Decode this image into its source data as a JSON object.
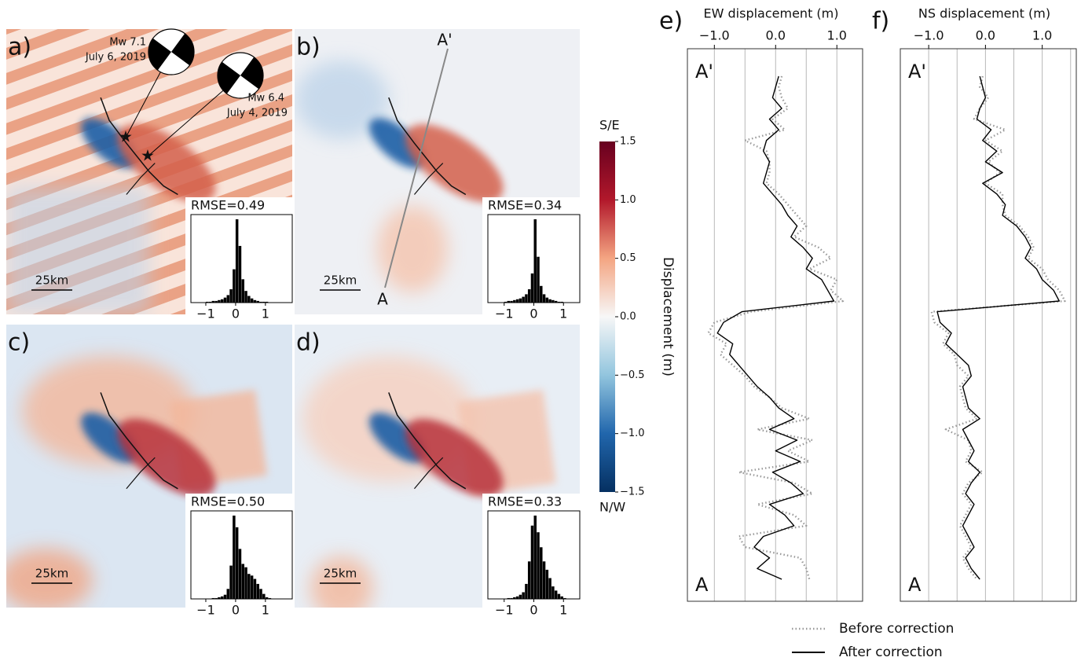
{
  "chart_data": [
    {
      "type": "histogram",
      "panel_label": "a)",
      "rmse": "RMSE=0.49",
      "scale_label": "25km",
      "annotations": [
        "Mw 7.1",
        "July 6, 2019",
        "Mw 6.4",
        "July 4, 2019"
      ],
      "bins": [
        -1.0,
        -0.9,
        -0.8,
        -0.7,
        -0.6,
        -0.5,
        -0.4,
        -0.3,
        -0.2,
        -0.1,
        0.0,
        0.1,
        0.2,
        0.3,
        0.4,
        0.5,
        0.6,
        0.7,
        0.8,
        0.9,
        1.0,
        1.1,
        1.2
      ],
      "values": [
        1,
        1,
        2,
        2,
        3,
        4,
        6,
        9,
        16,
        40,
        100,
        68,
        28,
        14,
        8,
        5,
        3,
        2,
        1,
        1,
        1,
        0
      ],
      "color": "#000000",
      "xlim": [
        -1.5,
        1.9
      ],
      "xticks": [
        {
          "value": -1,
          "label": "−1"
        },
        0,
        1
      ]
    },
    {
      "type": "histogram",
      "panel_label": "b)",
      "rmse": "RMSE=0.34",
      "scale_label": "25km",
      "annotations": [
        "A'",
        "A"
      ],
      "bins": [
        -1.0,
        -0.9,
        -0.8,
        -0.7,
        -0.6,
        -0.5,
        -0.4,
        -0.3,
        -0.2,
        -0.1,
        0.0,
        0.1,
        0.2,
        0.3,
        0.4,
        0.5,
        0.6,
        0.7,
        0.8,
        0.9,
        1.0,
        1.1,
        1.2
      ],
      "values": [
        1,
        2,
        2,
        3,
        4,
        5,
        7,
        10,
        16,
        35,
        100,
        55,
        20,
        10,
        6,
        4,
        3,
        2,
        1,
        1,
        0,
        0
      ],
      "color": "#000000",
      "xlim": [
        -1.55,
        1.55
      ],
      "xticks": [
        {
          "value": -1,
          "label": "−1"
        },
        0,
        1
      ]
    },
    {
      "type": "histogram",
      "panel_label": "c)",
      "rmse": "RMSE=0.50",
      "scale_label": "25km",
      "bins": [
        -1.0,
        -0.9,
        -0.8,
        -0.7,
        -0.6,
        -0.5,
        -0.4,
        -0.3,
        -0.2,
        -0.1,
        0.0,
        0.1,
        0.2,
        0.3,
        0.4,
        0.5,
        0.6,
        0.7,
        0.8,
        0.9,
        1.0,
        1.1,
        1.2
      ],
      "values": [
        0,
        0,
        1,
        1,
        2,
        3,
        5,
        12,
        40,
        100,
        86,
        60,
        42,
        38,
        30,
        28,
        24,
        18,
        12,
        6,
        2,
        1
      ],
      "color": "#000000",
      "xlim": [
        -1.5,
        1.9
      ],
      "xticks": [
        {
          "value": -1,
          "label": "−1"
        },
        0,
        1
      ]
    },
    {
      "type": "histogram",
      "panel_label": "d)",
      "rmse": "RMSE=0.33",
      "scale_label": "25km",
      "bins": [
        -1.0,
        -0.9,
        -0.8,
        -0.7,
        -0.6,
        -0.5,
        -0.4,
        -0.3,
        -0.2,
        -0.1,
        0.0,
        0.1,
        0.2,
        0.3,
        0.4,
        0.5,
        0.6,
        0.7,
        0.8,
        0.9,
        1.0,
        1.1,
        1.2
      ],
      "values": [
        0,
        1,
        1,
        2,
        3,
        5,
        8,
        18,
        45,
        88,
        100,
        80,
        62,
        45,
        35,
        25,
        15,
        10,
        6,
        3,
        1,
        0
      ],
      "color": "#000000",
      "xlim": [
        -1.55,
        1.55
      ],
      "xticks": [
        {
          "value": -1,
          "label": "−1"
        },
        0,
        1
      ]
    },
    {
      "type": "colorbar",
      "top_label": "S/E",
      "bottom_label": "N/W",
      "ylabel": "Displacement (m)",
      "ylim": [
        -1.5,
        1.5
      ],
      "yticks": [
        {
          "value": -1.5,
          "label": "−1.5"
        },
        {
          "value": -1.0,
          "label": "−1.0"
        },
        {
          "value": -0.5,
          "label": "−0.5"
        },
        {
          "value": 0.0,
          "label": "0.0"
        },
        {
          "value": 0.5,
          "label": "0.5"
        },
        {
          "value": 1.0,
          "label": "1.0"
        },
        {
          "value": 1.5,
          "label": "1.5"
        }
      ],
      "colors": [
        "#053061",
        "#2166ac",
        "#92c5de",
        "#f7f7f7",
        "#f4a582",
        "#b2182b",
        "#67001f"
      ]
    },
    {
      "type": "line",
      "panel_label": "e)",
      "title": "EW displacement (m)",
      "top_label": "A'",
      "bottom_label": "A",
      "xlim": [
        -1.44,
        1.42
      ],
      "xticks": [
        {
          "value": -1.0,
          "label": "−1.0"
        },
        {
          "value": 0.0,
          "label": "0.0"
        },
        {
          "value": 1.0,
          "label": "1.0"
        }
      ],
      "xgrid": [
        -1.0,
        -0.5,
        0.0,
        0.5,
        1.0
      ],
      "series": [
        {
          "name": "Before correction",
          "color": "#999999",
          "linestyle": "dotted",
          "values": [
            0.1,
            0.05,
            0.1,
            0.2,
            -0.05,
            0.15,
            -0.5,
            -0.15,
            -0.1,
            -0.1,
            -0.15,
            0.05,
            0.2,
            0.35,
            0.5,
            0.3,
            0.7,
            0.9,
            0.55,
            1.0,
            0.9,
            1.1,
            -0.4,
            -1.0,
            -1.1,
            -0.8,
            -0.9,
            -0.7,
            -0.5,
            -0.35,
            -0.1,
            0.1,
            0.55,
            -0.3,
            0.6,
            0.2,
            0.55,
            -0.6,
            0.3,
            0.6,
            -0.3,
            0.3,
            0.5,
            -0.6,
            -0.5,
            0.4,
            0.5,
            0.55
          ]
        },
        {
          "name": "After correction",
          "color": "#000000",
          "linestyle": "solid",
          "values": [
            0.05,
            0.0,
            -0.05,
            0.1,
            -0.1,
            0.05,
            -0.15,
            -0.2,
            -0.1,
            -0.15,
            -0.2,
            -0.05,
            0.1,
            0.2,
            0.35,
            0.25,
            0.45,
            0.6,
            0.5,
            0.75,
            0.85,
            0.95,
            -0.55,
            -0.85,
            -0.95,
            -0.7,
            -0.75,
            -0.6,
            -0.45,
            -0.3,
            -0.1,
            0.05,
            0.3,
            -0.1,
            0.35,
            0.0,
            0.4,
            -0.05,
            0.25,
            0.45,
            -0.1,
            0.15,
            0.3,
            -0.2,
            -0.35,
            -0.1,
            -0.3,
            0.1
          ]
        }
      ]
    },
    {
      "type": "line",
      "panel_label": "f)",
      "title": "NS displacement (m)",
      "top_label": "A'",
      "bottom_label": "A",
      "xlim": [
        -1.5,
        1.6
      ],
      "xticks": [
        {
          "value": -1.0,
          "label": "−1.0"
        },
        {
          "value": 0.0,
          "label": "0.0"
        },
        {
          "value": 1.0,
          "label": "1.0"
        }
      ],
      "xgrid": [
        -1.0,
        -0.5,
        0.0,
        0.5,
        1.0,
        1.5
      ],
      "series": [
        {
          "color": "#999999",
          "linestyle": "dotted",
          "values": [
            -0.05,
            -0.1,
            0.05,
            -0.1,
            -0.2,
            0.35,
            0.0,
            0.3,
            0.05,
            0.25,
            0.0,
            0.3,
            0.3,
            0.35,
            0.6,
            0.75,
            0.85,
            0.75,
            1.0,
            1.1,
            1.3,
            1.4,
            -0.95,
            -0.9,
            -0.65,
            -0.75,
            -0.55,
            -0.5,
            -0.3,
            -0.45,
            -0.4,
            -0.35,
            -0.15,
            -0.7,
            -0.3,
            -0.25,
            -0.35,
            -0.05,
            -0.3,
            -0.4,
            -0.25,
            -0.35,
            -0.45,
            -0.35,
            -0.25,
            -0.4,
            -0.3,
            -0.15
          ]
        },
        {
          "color": "#000000",
          "linestyle": "solid",
          "values": [
            -0.1,
            -0.05,
            0.0,
            -0.1,
            -0.15,
            0.1,
            -0.05,
            0.2,
            0.0,
            0.3,
            -0.05,
            0.2,
            0.35,
            0.3,
            0.55,
            0.7,
            0.8,
            0.7,
            0.9,
            1.0,
            1.2,
            1.3,
            -0.85,
            -0.8,
            -0.6,
            -0.7,
            -0.5,
            -0.3,
            -0.25,
            -0.4,
            -0.35,
            -0.3,
            -0.1,
            -0.4,
            -0.3,
            -0.2,
            -0.3,
            -0.1,
            -0.25,
            -0.35,
            -0.2,
            -0.3,
            -0.4,
            -0.3,
            -0.2,
            -0.35,
            -0.25,
            -0.1
          ]
        }
      ]
    }
  ]
}
